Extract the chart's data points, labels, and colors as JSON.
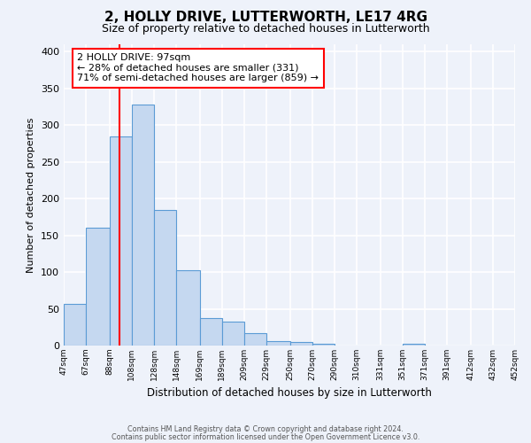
{
  "title": "2, HOLLY DRIVE, LUTTERWORTH, LE17 4RG",
  "subtitle": "Size of property relative to detached houses in Lutterworth",
  "xlabel": "Distribution of detached houses by size in Lutterworth",
  "ylabel": "Number of detached properties",
  "bar_edges": [
    47,
    67,
    88,
    108,
    128,
    148,
    169,
    189,
    209,
    229,
    250,
    270,
    290,
    310,
    331,
    351,
    371,
    391,
    412,
    432,
    452
  ],
  "bar_heights": [
    57,
    160,
    284,
    328,
    185,
    102,
    37,
    32,
    17,
    6,
    5,
    2,
    0,
    0,
    0,
    3,
    0,
    0,
    0,
    0
  ],
  "bar_color": "#c5d8f0",
  "bar_edge_color": "#5b9bd5",
  "bar_linewidth": 0.8,
  "vline_x": 97,
  "vline_color": "red",
  "vline_linewidth": 1.5,
  "ylim_max": 410,
  "yticks": [
    0,
    50,
    100,
    150,
    200,
    250,
    300,
    350,
    400
  ],
  "annotation_text": "2 HOLLY DRIVE: 97sqm\n← 28% of detached houses are smaller (331)\n71% of semi-detached houses are larger (859) →",
  "footer_line1": "Contains HM Land Registry data © Crown copyright and database right 2024.",
  "footer_line2": "Contains public sector information licensed under the Open Government Licence v3.0.",
  "background_color": "#eef2fa",
  "grid_color": "white",
  "tick_labels": [
    "47sqm",
    "67sqm",
    "88sqm",
    "108sqm",
    "128sqm",
    "148sqm",
    "169sqm",
    "189sqm",
    "209sqm",
    "229sqm",
    "250sqm",
    "270sqm",
    "290sqm",
    "310sqm",
    "331sqm",
    "351sqm",
    "371sqm",
    "391sqm",
    "412sqm",
    "432sqm",
    "452sqm"
  ]
}
